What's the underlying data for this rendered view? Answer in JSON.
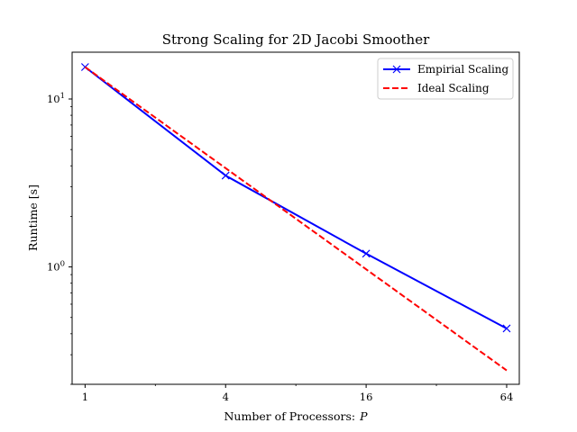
{
  "chart_data": {
    "type": "line",
    "title": "Strong Scaling for 2D Jacobi Smoother",
    "xlabel": "Number of Processors:",
    "xlabel_var": "P",
    "ylabel": "Runtime [s]",
    "xscale": "log2",
    "yscale": "log10",
    "xlim": [
      0.88,
      72.5
    ],
    "ylim": [
      0.2,
      19.0
    ],
    "x_ticks": [
      1,
      4,
      16,
      64
    ],
    "x_tick_labels": [
      "1",
      "4",
      "16",
      "64"
    ],
    "y_major_ticks": [
      1,
      10
    ],
    "y_tick_labels": [
      {
        "base": "10",
        "exp": "0"
      },
      {
        "base": "10",
        "exp": "1"
      }
    ],
    "grid": false,
    "legend_position": "top-right",
    "series": [
      {
        "name": "Empirial Scaling",
        "x": [
          1,
          4,
          16,
          64
        ],
        "y": [
          15.5,
          3.5,
          1.2,
          0.43
        ],
        "color": "#0000ff",
        "line_style": "solid",
        "marker": "x"
      },
      {
        "name": "Ideal Scaling",
        "x": [
          1,
          64
        ],
        "y": [
          15.5,
          0.242
        ],
        "color": "#ff0000",
        "line_style": "dashed",
        "marker": "none"
      }
    ]
  }
}
